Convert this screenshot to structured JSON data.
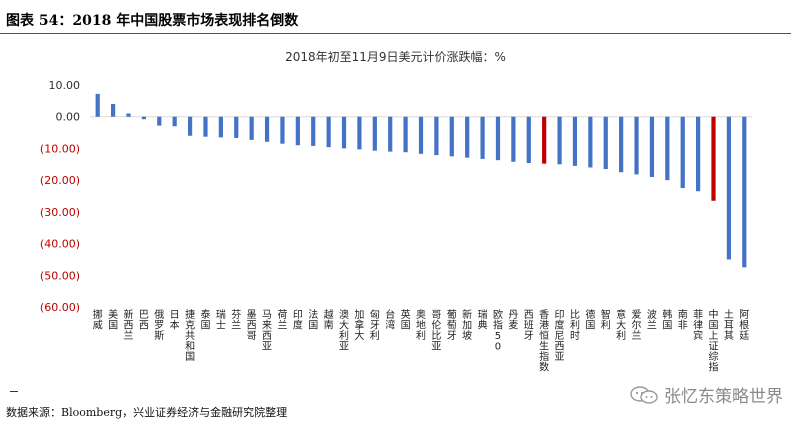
{
  "header": {
    "title": "图表 54：2018 年中国股票市场表现排名倒数"
  },
  "footnote": "数据来源：Bloomberg，兴业证券经济与金融研究院整理",
  "watermark": "张忆东策略世界",
  "colors": {
    "bar": "#4472c4",
    "highlight": "#c00000",
    "negative_tick": "#c00000",
    "positive_tick": "#2f2f2f",
    "rule": "#2f5597"
  },
  "chart_data": {
    "type": "bar",
    "title": "2018年初至11月9日美元计价涨跌幅：%",
    "xlabel": "",
    "ylabel": "",
    "ylim": [
      -60,
      10
    ],
    "yticks": [
      10,
      0,
      -10,
      -20,
      -30,
      -40,
      -50,
      -60
    ],
    "ytick_labels": [
      "10.00",
      "0.00",
      "(10.00)",
      "(20.00)",
      "(30.00)",
      "(40.00)",
      "(50.00)",
      "(60.00)"
    ],
    "grid": false,
    "legend": "none",
    "categories": [
      "挪威",
      "美国",
      "新西兰",
      "巴西",
      "俄罗斯",
      "日本",
      "捷克共和国",
      "泰国",
      "瑞士",
      "芬兰",
      "墨西哥",
      "马来西亚",
      "荷兰",
      "印度",
      "法国",
      "越南",
      "澳大利亚",
      "加拿大",
      "匈牙利",
      "台湾",
      "英国",
      "奥地利",
      "哥伦比亚",
      "葡萄牙",
      "新加坡",
      "瑞典",
      "欧指50",
      "丹麦",
      "西班牙",
      "香港恒生指数",
      "印度尼西亚",
      "比利时",
      "德国",
      "智利",
      "意大利",
      "爱尔兰",
      "波兰",
      "韩国",
      "南非",
      "菲律宾",
      "中国上证综指",
      "土耳其",
      "阿根廷"
    ],
    "values": [
      7.2,
      4.0,
      1.0,
      -0.8,
      -2.8,
      -3.0,
      -6.0,
      -6.3,
      -6.5,
      -6.7,
      -7.3,
      -7.9,
      -8.5,
      -9.0,
      -9.2,
      -9.6,
      -10.0,
      -10.3,
      -10.7,
      -11.0,
      -11.2,
      -11.7,
      -12.1,
      -12.5,
      -12.9,
      -13.3,
      -13.7,
      -14.2,
      -14.6,
      -14.8,
      -15.0,
      -15.5,
      -16.0,
      -16.5,
      -17.5,
      -18.2,
      -19.0,
      -20.0,
      -22.5,
      -23.5,
      -26.5,
      -45.0,
      -47.5
    ],
    "highlighted": [
      "香港恒生指数",
      "中国上证综指"
    ]
  }
}
